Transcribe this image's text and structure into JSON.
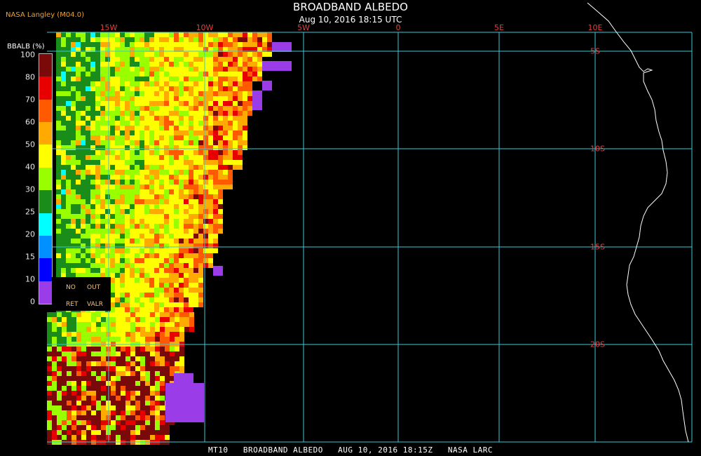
{
  "header": {
    "title": "BROADBAND ALBEDO",
    "subtitle": "Aug 10, 2016 18:15 UTC",
    "source": "NASA Langley (M04.0)"
  },
  "longitude_labels": [
    "15W",
    "10W",
    "5W",
    "0",
    "5E",
    "10E"
  ],
  "latitude_labels": [
    "5S",
    "10S",
    "15S",
    "20S"
  ],
  "legend": {
    "title": "BBALB (%)",
    "ticks": [
      "100",
      "80",
      "70",
      "60",
      "50",
      "40",
      "30",
      "25",
      "20",
      "15",
      "10",
      "0"
    ],
    "colors": [
      "#7a0a0a",
      "#e80000",
      "#ff5a00",
      "#ffaa00",
      "#ffff00",
      "#99ff00",
      "#1a8c1a",
      "#00ffff",
      "#0090ff",
      "#0000ff",
      "#9a3ce8"
    ],
    "notes": [
      "NO",
      "OUT",
      "RET",
      "VALR"
    ]
  },
  "footer": {
    "caption": "MT10   BROADBAND ALBEDO   AUG 10, 2016 18:15Z   NASA LARC"
  }
}
